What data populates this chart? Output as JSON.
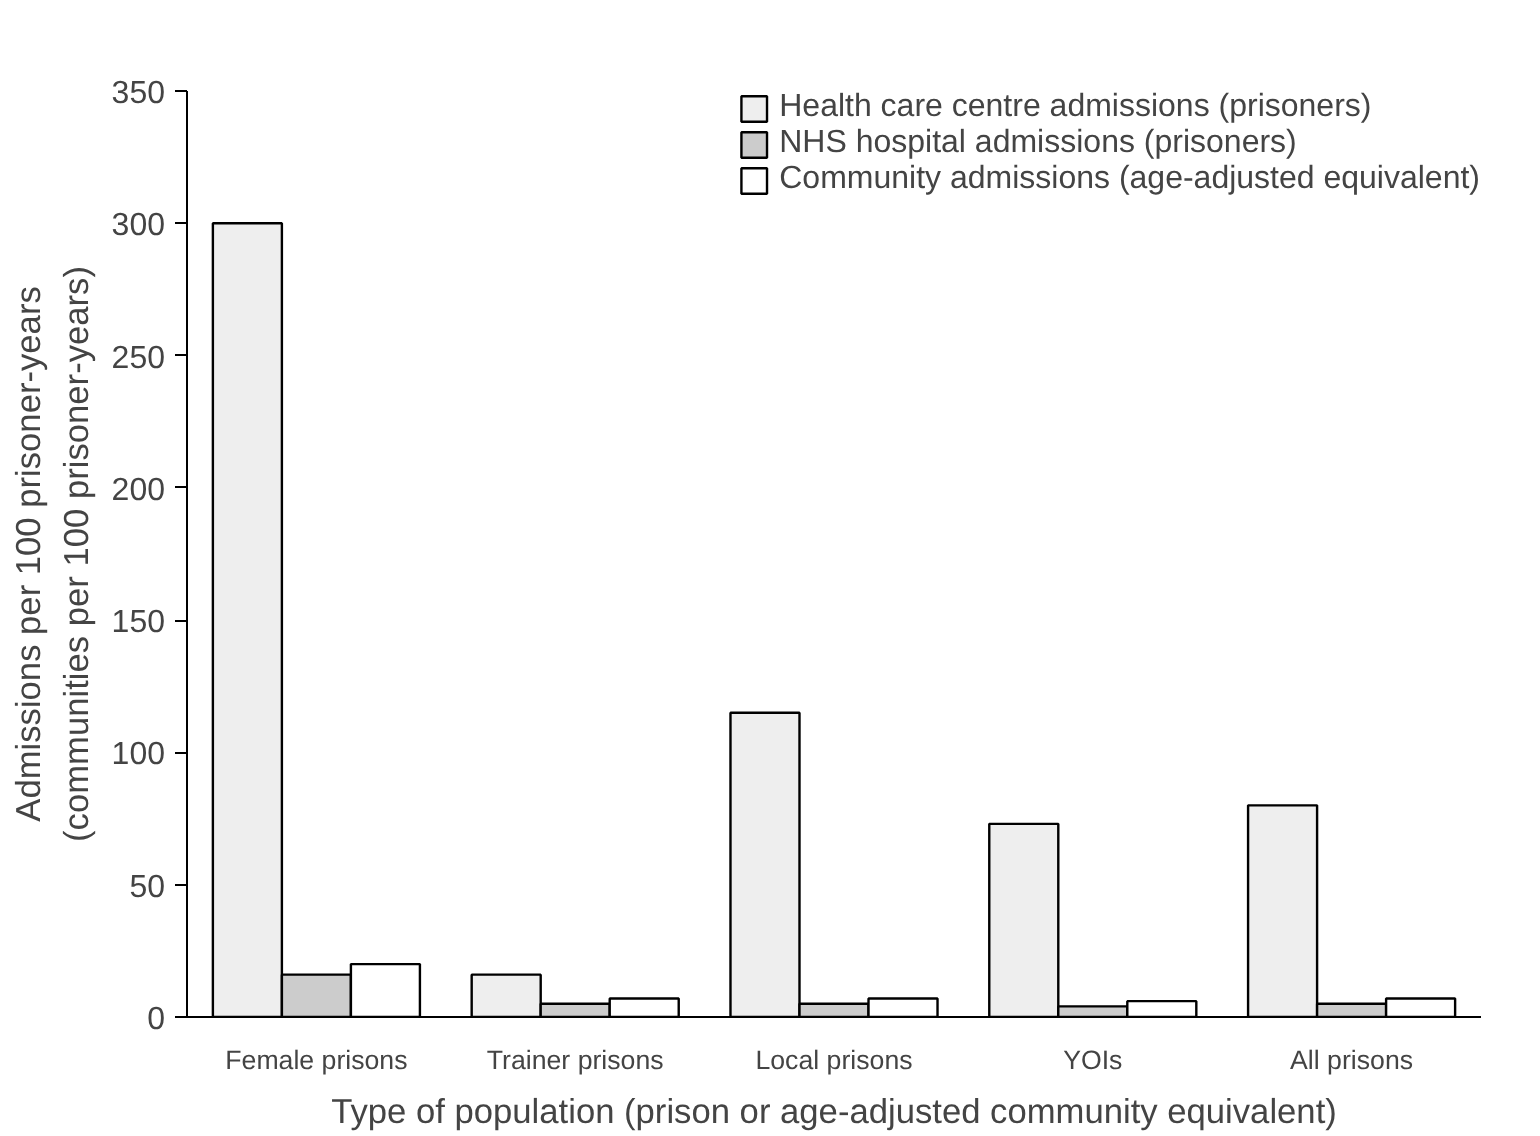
{
  "chart_data": {
    "type": "bar",
    "xlabel": "Type of population (prison or age-adjusted community equivalent)",
    "ylabel": "Admissions per 100 prisoner-years\n(communities per 100 prisoner-years)",
    "categories": [
      "Female prisons",
      "Trainer prisons",
      "Local prisons",
      "YOIs",
      "All prisons"
    ],
    "series": [
      {
        "name": "Health care centre admissions (prisoners)",
        "color": "#eeeeee",
        "values": [
          300,
          16,
          115,
          73,
          80
        ]
      },
      {
        "name": "NHS hospital admissions (prisoners)",
        "color": "#cccccc",
        "values": [
          16,
          5,
          5,
          4,
          5
        ]
      },
      {
        "name": "Community admissions (age-adjusted equivalent)",
        "color": "#ffffff",
        "values": [
          20,
          7,
          7,
          6,
          7
        ]
      }
    ],
    "ylim": [
      0,
      350
    ],
    "yticks": [
      0,
      50,
      100,
      150,
      200,
      250,
      300,
      350
    ],
    "grid": false,
    "legend": "top right"
  }
}
